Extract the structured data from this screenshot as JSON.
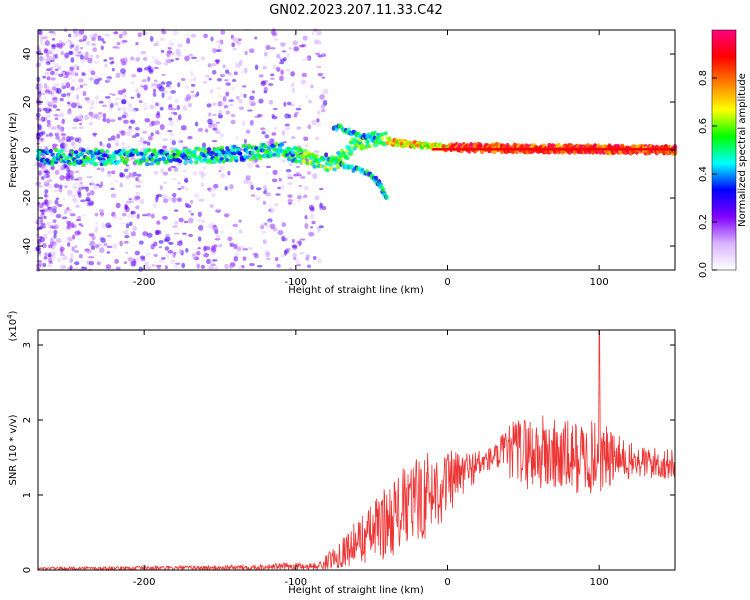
{
  "title": "GN02.2023.207.11.33.C42",
  "chart_data": [
    {
      "type": "heatmap",
      "xlabel": "Height of straight line (km)",
      "ylabel": "Frequency (Hz)",
      "xlim": [
        -270,
        150
      ],
      "ylim": [
        -50,
        50
      ],
      "x_ticks": [
        -200,
        -100,
        0,
        100
      ],
      "y_ticks": [
        -40,
        -20,
        0,
        20,
        40
      ],
      "colorbar": {
        "label": "Normalized spectral amplitude",
        "range": [
          0,
          1
        ],
        "ticks": [
          "0.0",
          "0.2",
          "0.4",
          "0.6",
          "0.8"
        ],
        "colors": [
          "#ffffff",
          "#d8b4ff",
          "#8000ff",
          "#0000ff",
          "#00ffff",
          "#00ff00",
          "#ffff00",
          "#ff8000",
          "#ff0000",
          "#ff0080"
        ]
      },
      "main_band": [
        {
          "x": -270,
          "f": -3
        },
        {
          "x": -200,
          "f": -3
        },
        {
          "x": -150,
          "f": -2
        },
        {
          "x": -110,
          "f": 0
        },
        {
          "x": -90,
          "f": -4
        },
        {
          "x": -75,
          "f": -6
        },
        {
          "x": -60,
          "f": 3
        },
        {
          "x": -45,
          "f": 5
        },
        {
          "x": -35,
          "f": 3
        },
        {
          "x": -20,
          "f": 2
        },
        {
          "x": 0,
          "f": 1
        },
        {
          "x": 150,
          "f": 0
        }
      ],
      "branches": [
        {
          "x": [
            -80,
            -70,
            -60,
            -50,
            -45,
            -40
          ],
          "f": [
            -3,
            -6,
            -8,
            -10,
            -14,
            -20
          ]
        },
        {
          "x": [
            -75,
            -65,
            -55,
            -45
          ],
          "f": [
            10,
            8,
            6,
            4
          ]
        }
      ]
    },
    {
      "type": "line",
      "xlabel": "Height of straight line (km)",
      "ylabel": "SNR (10 * v/v)",
      "y_multiplier": "(x10",
      "y_multiplier_exp": "4",
      "y_multiplier_close": ")",
      "xlim": [
        -270,
        150
      ],
      "ylim": [
        0,
        3.2
      ],
      "x_ticks": [
        -200,
        -100,
        0,
        100
      ],
      "y_ticks": [
        0,
        1,
        2,
        3
      ],
      "color": "#ee3333",
      "envelope": [
        {
          "x": -270,
          "mean": 0.02,
          "amp": 0.02
        },
        {
          "x": -150,
          "mean": 0.03,
          "amp": 0.03
        },
        {
          "x": -100,
          "mean": 0.05,
          "amp": 0.05
        },
        {
          "x": -85,
          "mean": 0.05,
          "amp": 0.05
        },
        {
          "x": -80,
          "mean": 0.1,
          "amp": 0.1
        },
        {
          "x": -65,
          "mean": 0.3,
          "amp": 0.25
        },
        {
          "x": -50,
          "mean": 0.5,
          "amp": 0.4
        },
        {
          "x": -40,
          "mean": 0.65,
          "amp": 0.5
        },
        {
          "x": -30,
          "mean": 0.8,
          "amp": 0.55
        },
        {
          "x": -15,
          "mean": 1.0,
          "amp": 0.6
        },
        {
          "x": 0,
          "mean": 1.15,
          "amp": 0.45
        },
        {
          "x": 15,
          "mean": 1.35,
          "amp": 0.25
        },
        {
          "x": 30,
          "mean": 1.5,
          "amp": 0.15
        },
        {
          "x": 45,
          "mean": 1.6,
          "amp": 0.45
        },
        {
          "x": 60,
          "mean": 1.55,
          "amp": 0.55
        },
        {
          "x": 80,
          "mean": 1.5,
          "amp": 0.5
        },
        {
          "x": 100,
          "mean": 1.5,
          "amp": 0.5
        },
        {
          "x": 120,
          "mean": 1.45,
          "amp": 0.25
        },
        {
          "x": 150,
          "mean": 1.4,
          "amp": 0.2
        }
      ],
      "peak": {
        "x": 100,
        "y": 3.2
      }
    }
  ]
}
